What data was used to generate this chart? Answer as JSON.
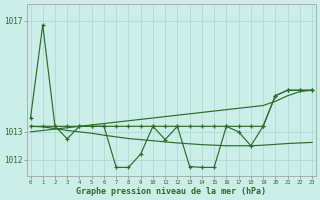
{
  "bg_color": "#cceee8",
  "grid_color": "#aaddd6",
  "line_color": "#2d6b2d",
  "xlabel": "Graphe pression niveau de la mer (hPa)",
  "x": [
    0,
    1,
    2,
    3,
    4,
    5,
    6,
    7,
    8,
    9,
    10,
    11,
    12,
    13,
    14,
    15,
    16,
    17,
    18,
    19,
    20,
    21,
    22,
    23
  ],
  "y_zigzag": [
    1013.5,
    1016.85,
    1013.2,
    1012.75,
    1013.2,
    1013.2,
    1013.2,
    1011.72,
    1011.72,
    1012.2,
    1013.2,
    1012.72,
    1013.2,
    1011.75,
    1011.72,
    1011.72,
    1013.2,
    1013.0,
    1012.5,
    1013.2,
    1014.3,
    1014.5,
    1014.5,
    1014.5
  ],
  "y_flat": [
    1013.2,
    1013.2,
    1013.2,
    1013.2,
    1013.2,
    1013.2,
    1013.2,
    1013.2,
    1013.2,
    1013.2,
    1013.2,
    1013.2,
    1013.2,
    1013.2,
    1013.2,
    1013.2,
    1013.2,
    1013.2,
    1013.2,
    1013.2,
    1014.3,
    1014.5,
    1014.5,
    1014.5
  ],
  "y_rise": [
    1013.0,
    1013.05,
    1013.1,
    1013.15,
    1013.2,
    1013.25,
    1013.3,
    1013.35,
    1013.4,
    1013.45,
    1013.5,
    1013.55,
    1013.6,
    1013.65,
    1013.7,
    1013.75,
    1013.8,
    1013.85,
    1013.9,
    1013.95,
    1014.1,
    1014.3,
    1014.45,
    1014.5
  ],
  "y_fall": [
    1013.2,
    1013.18,
    1013.12,
    1013.05,
    1013.0,
    1012.95,
    1012.88,
    1012.82,
    1012.76,
    1012.72,
    1012.68,
    1012.64,
    1012.6,
    1012.57,
    1012.54,
    1012.52,
    1012.5,
    1012.5,
    1012.5,
    1012.52,
    1012.55,
    1012.58,
    1012.6,
    1012.62
  ],
  "ytick_vals": [
    1012.0,
    1013.0,
    1017.0
  ],
  "ytick_labels": [
    "1012",
    "1013",
    "1017"
  ],
  "ylim": [
    1011.4,
    1017.6
  ],
  "xlim": [
    -0.3,
    23.3
  ]
}
